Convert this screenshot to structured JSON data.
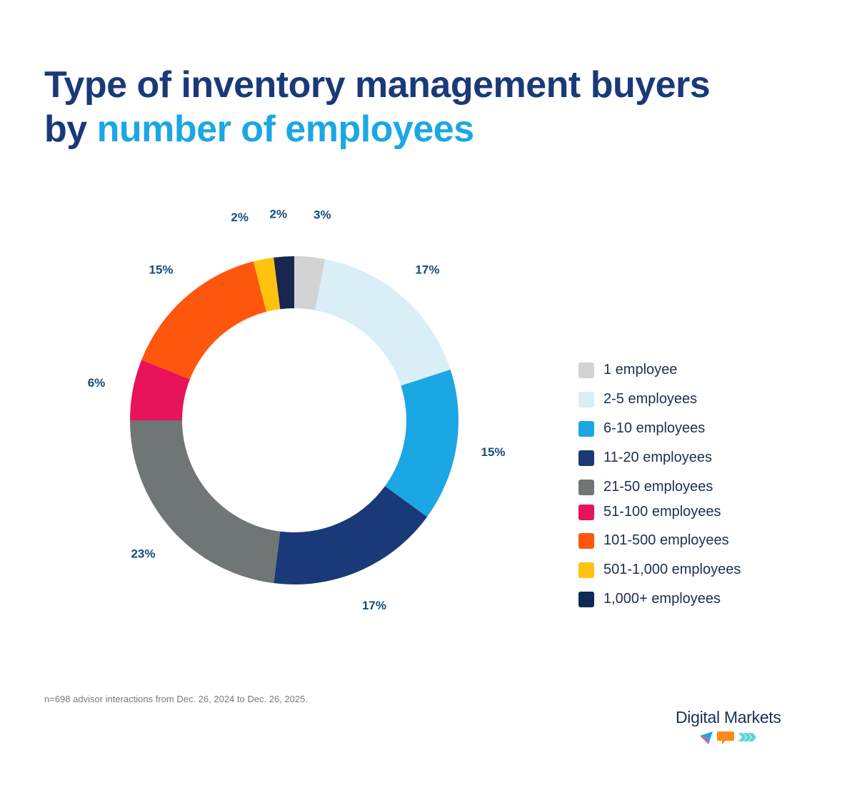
{
  "title": {
    "line1": "Type of inventory management buyers",
    "line2_prefix": "by ",
    "line2_highlight": "number of employees"
  },
  "chart_data": {
    "type": "pie",
    "variant": "donut",
    "categories": [
      "1 employee",
      "2-5 employees",
      "6-10 employees",
      "11-20 employees",
      "21-50 employees",
      "51-100 employees",
      "101-500 employees",
      "501-1,000 employees",
      "1,000+ employees"
    ],
    "values": [
      3,
      17,
      15,
      17,
      23,
      6,
      15,
      2,
      2
    ],
    "data_labels": [
      "3%",
      "17%",
      "15%",
      "17%",
      "23%",
      "6%",
      "15%",
      "2%",
      "2%"
    ],
    "colors": [
      "#d3d3d3",
      "#daeef8",
      "#1ba7e4",
      "#1a3978",
      "#6f7675",
      "#e8135a",
      "#ff560d",
      "#ffc20e",
      "#1a2550"
    ],
    "legend_placement": "right",
    "unit": "%"
  },
  "footnote": "n=698 advisor interactions from Dec. 26, 2024 to Dec. 26, 2025.",
  "logo": {
    "text": "Digital Markets"
  }
}
